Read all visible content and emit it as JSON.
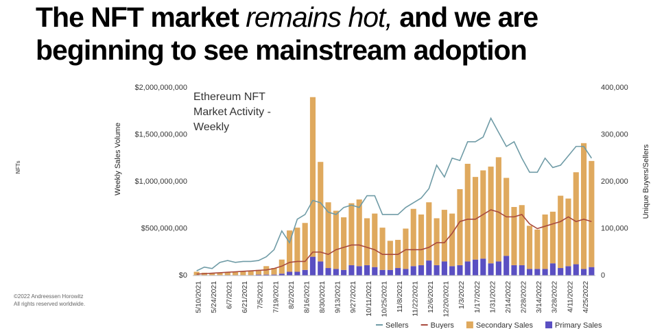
{
  "chart_data": {
    "type": "bar",
    "title_line1": [
      "The NFT market ",
      "remains hot,",
      " and we are"
    ],
    "title_line2": "beginning to see mainstream adoption",
    "chart_title": [
      "Ethereum NFT",
      "Market Activity -",
      "Weekly"
    ],
    "side_label": "NFTs",
    "copyright": [
      "©2022 Andreessen Horowitz",
      "All rights reserved worldwide."
    ],
    "ylabel": "Weekly Sales Volume",
    "y2label": "Unique Buyers/Sellers",
    "categories": [
      "5/10/2021",
      null,
      "5/24/2021",
      null,
      "6/7/2021",
      null,
      "6/21/2021",
      null,
      "7/5/2021",
      null,
      "7/19/2021",
      null,
      "8/2/2021",
      null,
      "8/16/2021",
      null,
      "8/30/2021",
      null,
      "9/13/2021",
      null,
      "9/27/2021",
      null,
      "10/11/2021",
      null,
      "10/25/2021",
      null,
      "11/8/2021",
      null,
      "11/22/2021",
      null,
      "12/6/2021",
      null,
      "12/20/2021",
      null,
      "1/3/2022",
      null,
      "1/17/2022",
      null,
      "1/31/2022",
      null,
      "2/14/2022",
      null,
      "2/28/2022",
      null,
      "3/14/2022",
      null,
      "3/28/2022",
      null,
      "4/11/2022",
      null,
      "4/25/2022",
      null
    ],
    "ylim": [
      0,
      2000000000
    ],
    "yticks": [
      {
        "value": 0,
        "label": "$0"
      },
      {
        "value": 500000000,
        "label": "$500,000,000"
      },
      {
        "value": 1000000000,
        "label": "$1,000,000,000"
      },
      {
        "value": 1500000000,
        "label": "$1,500,000,000"
      },
      {
        "value": 2000000000,
        "label": "$2,000,000,000"
      }
    ],
    "y2lim": [
      0,
      400000
    ],
    "y2ticks": [
      0,
      {
        "value": 100000,
        "label": "100,000"
      },
      {
        "value": 200000,
        "label": "200,000"
      },
      {
        "value": 300000,
        "label": "300,000"
      },
      {
        "value": 400000,
        "label": "400,000"
      }
    ],
    "series": [
      {
        "name": "Sellers",
        "type": "line",
        "axis": "y2",
        "color": "#6f9ba6",
        "values": [
          10000,
          18000,
          15000,
          28000,
          32000,
          28000,
          30000,
          30000,
          32000,
          40000,
          55000,
          95000,
          70000,
          120000,
          130000,
          160000,
          155000,
          135000,
          130000,
          145000,
          150000,
          145000,
          170000,
          170000,
          130000,
          130000,
          130000,
          145000,
          155000,
          165000,
          185000,
          235000,
          210000,
          250000,
          245000,
          285000,
          285000,
          295000,
          335000,
          305000,
          275000,
          285000,
          250000,
          220000,
          220000,
          250000,
          230000,
          235000,
          255000,
          275000,
          275000,
          250000
        ]
      },
      {
        "name": "Buyers",
        "type": "line",
        "axis": "y2",
        "color": "#a8493c",
        "values": [
          3000,
          4000,
          5000,
          6000,
          7000,
          8000,
          9000,
          10000,
          11000,
          12000,
          15000,
          20000,
          28000,
          30000,
          30000,
          50000,
          50000,
          45000,
          55000,
          60000,
          65000,
          65000,
          60000,
          55000,
          45000,
          45000,
          45000,
          55000,
          55000,
          55000,
          60000,
          70000,
          70000,
          90000,
          115000,
          120000,
          120000,
          130000,
          140000,
          135000,
          125000,
          125000,
          130000,
          110000,
          100000,
          105000,
          110000,
          115000,
          125000,
          115000,
          120000,
          115000
        ]
      },
      {
        "name": "Secondary Sales",
        "type": "bar",
        "color": "#dfa95e",
        "values": [
          35000000,
          25000000,
          20000000,
          25000000,
          30000000,
          35000000,
          40000000,
          45000000,
          50000000,
          90000000,
          70000000,
          150000000,
          440000000,
          470000000,
          500000000,
          1700000000,
          1060000000,
          700000000,
          620000000,
          560000000,
          660000000,
          710000000,
          500000000,
          570000000,
          450000000,
          310000000,
          300000000,
          430000000,
          610000000,
          540000000,
          620000000,
          500000000,
          550000000,
          560000000,
          810000000,
          1040000000,
          880000000,
          940000000,
          1030000000,
          1110000000,
          830000000,
          620000000,
          640000000,
          460000000,
          420000000,
          580000000,
          550000000,
          770000000,
          720000000,
          980000000,
          1340000000,
          1130000000
        ]
      },
      {
        "name": "Primary Sales",
        "type": "bar",
        "color": "#5a4fc2",
        "values": [
          5000000,
          5000000,
          5000000,
          5000000,
          5000000,
          5000000,
          5000000,
          5000000,
          10000000,
          10000000,
          10000000,
          20000000,
          40000000,
          40000000,
          60000000,
          200000000,
          150000000,
          80000000,
          70000000,
          60000000,
          110000000,
          100000000,
          110000000,
          90000000,
          60000000,
          60000000,
          80000000,
          70000000,
          100000000,
          110000000,
          160000000,
          110000000,
          150000000,
          100000000,
          110000000,
          150000000,
          170000000,
          180000000,
          130000000,
          150000000,
          210000000,
          110000000,
          110000000,
          70000000,
          70000000,
          70000000,
          130000000,
          80000000,
          100000000,
          120000000,
          70000000,
          90000000
        ]
      }
    ]
  }
}
